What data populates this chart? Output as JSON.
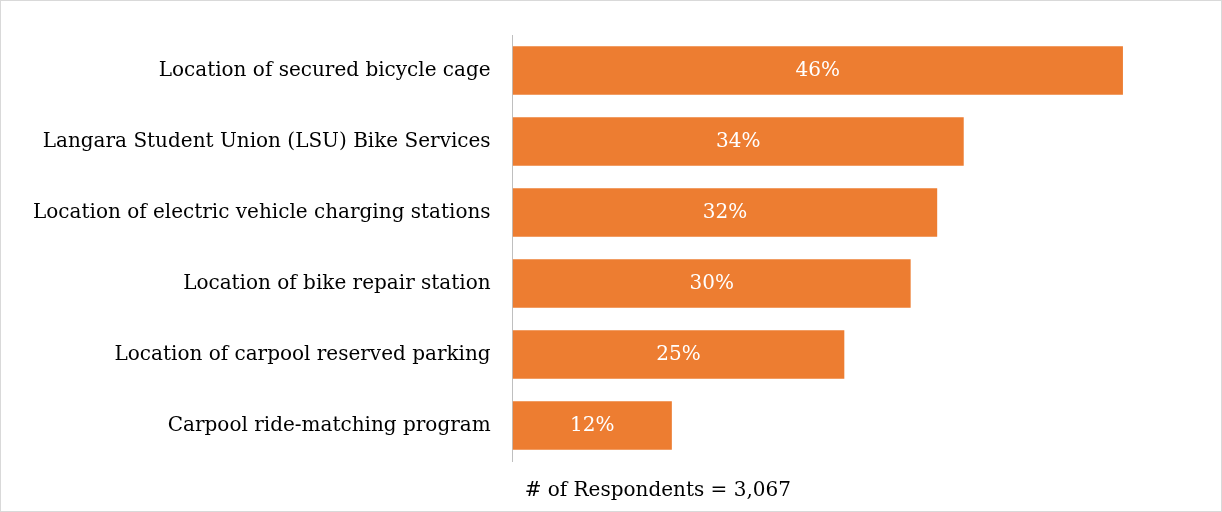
{
  "chart_data": {
    "type": "bar",
    "orientation": "horizontal",
    "categories": [
      "Location of secured bicycle cage",
      "Langara Student Union (LSU) Bike Services",
      "Location of electric vehicle charging stations",
      "Location of bike repair station",
      "Location of carpool reserved parking",
      "Carpool ride-matching program"
    ],
    "values": [
      46,
      34,
      32,
      30,
      25,
      12
    ],
    "value_labels": [
      "46%",
      "34%",
      "32%",
      "30%",
      "25%",
      "12%"
    ],
    "color": "#ed7d31",
    "tick_labels": "y",
    "annotations": [
      "# of Respondents = 3,067"
    ]
  }
}
